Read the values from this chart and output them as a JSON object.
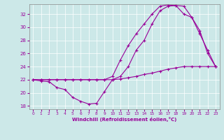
{
  "xlabel": "Windchill (Refroidissement éolien,°C)",
  "bg_color": "#cce8e8",
  "line_color": "#990099",
  "grid_color": "#aacccc",
  "spine_color": "#888888",
  "xlim": [
    -0.5,
    23.5
  ],
  "ylim": [
    17.5,
    33.5
  ],
  "xticks": [
    0,
    1,
    2,
    3,
    4,
    5,
    6,
    7,
    8,
    9,
    10,
    11,
    12,
    13,
    14,
    15,
    16,
    17,
    18,
    19,
    20,
    21,
    22,
    23
  ],
  "yticks": [
    18,
    20,
    22,
    24,
    26,
    28,
    30,
    32
  ],
  "line1_x": [
    0,
    1,
    2,
    3,
    4,
    5,
    6,
    7,
    8,
    9,
    10,
    11,
    12,
    13,
    14,
    15,
    16,
    17,
    18,
    19,
    20,
    21,
    22,
    23
  ],
  "line1_y": [
    22.0,
    21.8,
    21.7,
    20.8,
    20.5,
    19.3,
    18.7,
    18.3,
    18.4,
    20.2,
    22.0,
    22.1,
    22.3,
    22.5,
    22.8,
    23.0,
    23.3,
    23.6,
    23.8,
    24.0,
    24.0,
    24.0,
    24.0,
    24.0
  ],
  "line2_x": [
    0,
    1,
    2,
    3,
    4,
    5,
    6,
    7,
    8,
    9,
    10,
    11,
    12,
    13,
    14,
    15,
    16,
    17,
    18,
    19,
    20,
    21,
    22,
    23
  ],
  "line2_y": [
    22.0,
    22.0,
    22.0,
    22.0,
    22.0,
    22.0,
    22.0,
    22.0,
    22.0,
    22.0,
    22.5,
    25.0,
    27.2,
    29.0,
    30.5,
    32.0,
    33.2,
    33.4,
    33.3,
    32.0,
    31.5,
    29.5,
    26.0,
    24.0
  ],
  "line3_x": [
    0,
    1,
    2,
    3,
    4,
    5,
    6,
    7,
    8,
    9,
    10,
    11,
    12,
    13,
    14,
    15,
    16,
    17,
    18,
    19,
    20,
    21,
    22,
    23
  ],
  "line3_y": [
    22.0,
    22.0,
    22.0,
    22.0,
    22.0,
    22.0,
    22.0,
    22.0,
    22.0,
    22.0,
    22.0,
    22.5,
    24.0,
    26.5,
    28.0,
    30.5,
    32.5,
    33.2,
    33.3,
    33.2,
    31.5,
    29.0,
    26.5,
    24.0
  ]
}
